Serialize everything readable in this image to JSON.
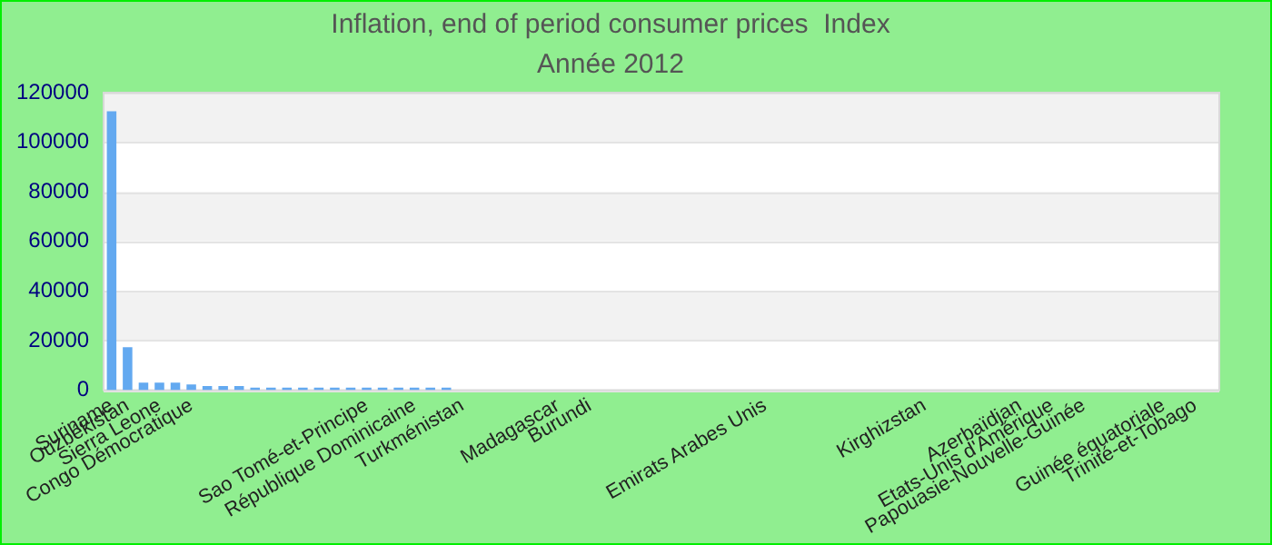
{
  "chart_data": {
    "type": "bar",
    "title": "Inflation, end of period consumer prices  Index",
    "subtitle": "Année 2012",
    "categories": [
      "Suriname",
      "Ouzbékistan",
      null,
      "Sierra Leone",
      null,
      "Congo Démocratique",
      null,
      null,
      null,
      null,
      null,
      null,
      null,
      null,
      null,
      null,
      "Sao Tomé-et-Principe",
      null,
      null,
      "République Dominicaine",
      null,
      null,
      "Turkménistan",
      null,
      null,
      null,
      null,
      null,
      "Madagascar",
      null,
      "Burundi",
      null,
      null,
      null,
      null,
      null,
      null,
      null,
      null,
      null,
      null,
      "Emirats Arabes Unis",
      null,
      null,
      null,
      null,
      null,
      null,
      null,
      null,
      null,
      "Kirghizstan",
      null,
      null,
      null,
      null,
      null,
      "Azerbaïdjan",
      null,
      "Etats-Unis d'Amérique",
      null,
      "Papouasie-Nouvelle-Guinée",
      null,
      null,
      null,
      null,
      "Guinée équatoriale",
      null,
      "Trinité-et-Tobago",
      null
    ],
    "values": [
      112500,
      17300,
      3000,
      3000,
      3000,
      2300,
      1700,
      1700,
      1700,
      1000,
      1000,
      1000,
      1000,
      1000,
      1000,
      1000,
      1000,
      1000,
      1000,
      1000,
      1000,
      1000,
      null,
      null,
      null,
      null,
      null,
      null,
      null,
      null,
      null,
      null,
      null,
      null,
      null,
      null,
      null,
      null,
      null,
      null,
      null,
      null,
      null,
      null,
      null,
      null,
      null,
      null,
      null,
      null,
      null,
      null,
      null,
      null,
      null,
      null,
      null,
      null,
      null,
      null,
      null,
      null,
      null,
      null,
      null,
      null,
      null,
      null,
      null,
      null
    ],
    "color": "#63a9f0",
    "ylim": [
      0,
      120000
    ],
    "yticks": [
      0,
      20000,
      40000,
      60000,
      80000,
      100000,
      120000
    ],
    "grid": true
  }
}
